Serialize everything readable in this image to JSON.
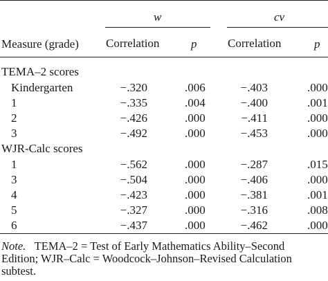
{
  "table": {
    "headers": {
      "group_w": "w",
      "group_cv": "cv",
      "measure": "Measure (grade)",
      "correlation_w": "Correlation",
      "p_w": "p",
      "correlation_cv": "Correlation",
      "p_cv": "p"
    },
    "sections": [
      {
        "title": "TEMA–2 scores",
        "rows": [
          {
            "measure": "Kindergarten",
            "corr_w": "−.320",
            "p_w": ".006",
            "corr_cv": "−.403",
            "p_cv": ".0000"
          },
          {
            "measure": "1",
            "corr_w": "−.335",
            "p_w": ".004",
            "corr_cv": "−.400",
            "p_cv": ".001"
          },
          {
            "measure": "2",
            "corr_w": "−.426",
            "p_w": ".000",
            "corr_cv": "−.411",
            "p_cv": ".0000"
          },
          {
            "measure": "3",
            "corr_w": "−.492",
            "p_w": ".000",
            "corr_cv": "−.453",
            "p_cv": ".0000"
          }
        ]
      },
      {
        "title": "WJR-Calc scores",
        "rows": [
          {
            "measure": "1",
            "corr_w": "−.562",
            "p_w": ".000",
            "corr_cv": "−.287",
            "p_cv": ".0150"
          },
          {
            "measure": "3",
            "corr_w": "−.504",
            "p_w": ".000",
            "corr_cv": "−.406",
            "p_cv": ".0000"
          },
          {
            "measure": "4",
            "corr_w": "−.423",
            "p_w": ".000",
            "corr_cv": "−.381",
            "p_cv": ".001"
          },
          {
            "measure": "5",
            "corr_w": "−.327",
            "p_w": ".000",
            "corr_cv": "−.316",
            "p_cv": ".0080"
          },
          {
            "measure": "6",
            "corr_w": "−.437",
            "p_w": ".000",
            "corr_cv": "−.462",
            "p_cv": ".0000"
          }
        ]
      }
    ]
  },
  "note": {
    "label": "Note.",
    "line1": "TEMA–2 = Test of Early Mathematics Ability–Second",
    "line2": "Edition; WJR–Calc = Woodcock–Johnson–Revised Calculation",
    "line3": "subtest."
  }
}
